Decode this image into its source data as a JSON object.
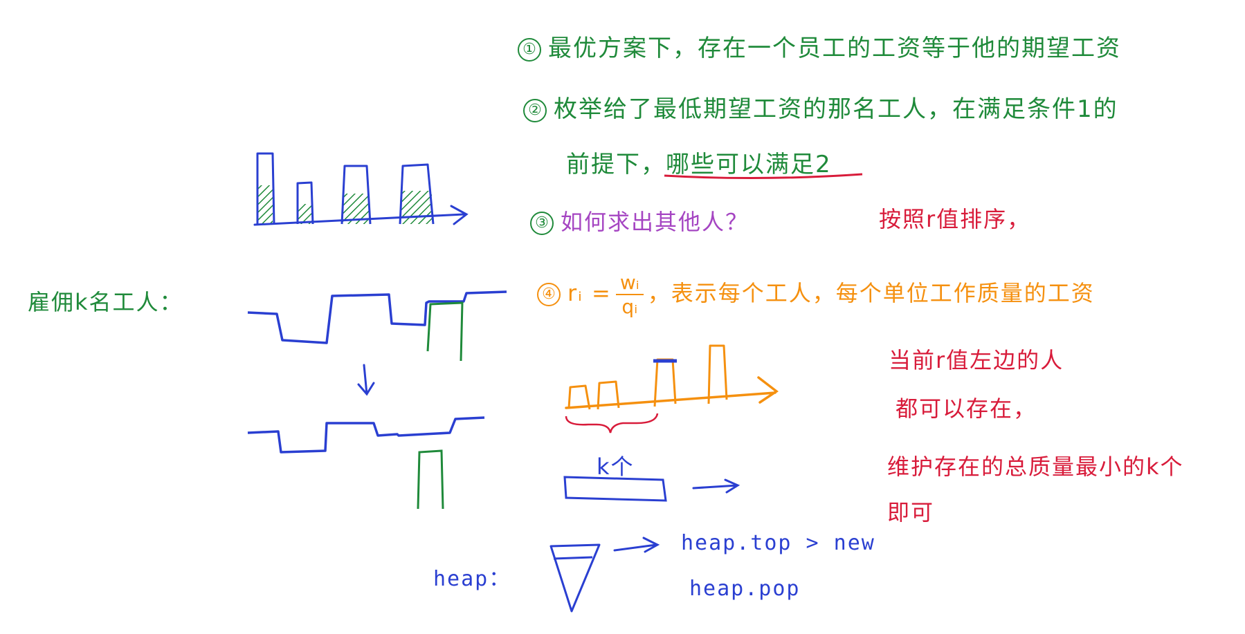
{
  "notes": {
    "n1": "最优方案下，存在一个员工的工资等于他的期望工资",
    "n2_line1": "枚举给了最低期望工资的那名工人，在满足条件1的",
    "n2_line2": "前提下，哪些可以满足2",
    "n3_question": "如何求出其他人？",
    "n3_answer": "按照r值排序，",
    "n4_suffix": "，表示每个工人，每个单位工作质量的工资",
    "left_label": "雇佣k名工人：",
    "red_note_1": "当前r值左边的人",
    "red_note_2": "都可以存在，",
    "red_note_3": "维护存在的总质量最小的k个",
    "red_note_4": "即可",
    "k_label": "k个",
    "heap_label": "heap：",
    "heap_cmp": "heap.top > new",
    "heap_pop": "heap.pop"
  },
  "markers": {
    "m1": "①",
    "m2": "②",
    "m3": "③",
    "m4": "④"
  },
  "formula": {
    "lhs": "rᵢ =",
    "num": "wᵢ",
    "den": "qᵢ"
  },
  "colors": {
    "green": "#1f8a3a",
    "blue": "#2a3fd1",
    "orange": "#f5900f",
    "red": "#d81b3a",
    "purple": "#a545c2"
  }
}
